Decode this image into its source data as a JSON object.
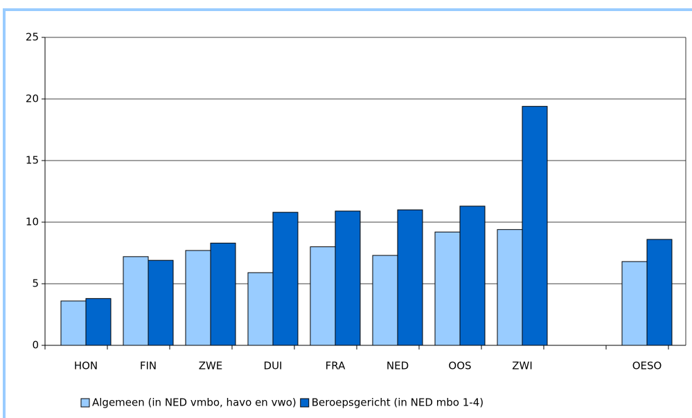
{
  "chart_data": {
    "type": "bar",
    "categories": [
      "HON",
      "FIN",
      "ZWE",
      "DUI",
      "FRA",
      "NED",
      "OOS",
      "ZWI",
      null,
      "OESO"
    ],
    "series": [
      {
        "name": "Algemeen (in NED vmbo, havo en vwo)",
        "color": "#99ccff",
        "values": [
          3.6,
          7.2,
          7.7,
          5.9,
          8.0,
          7.3,
          9.2,
          9.4,
          null,
          6.8
        ]
      },
      {
        "name": "Beroepsgericht (in NED mbo 1-4)",
        "color": "#0066cc",
        "values": [
          3.8,
          6.9,
          8.3,
          10.8,
          10.9,
          11.0,
          11.3,
          19.4,
          null,
          8.6
        ]
      }
    ],
    "ylim": [
      0,
      25
    ],
    "yticks": [
      0,
      5,
      10,
      15,
      20,
      25
    ],
    "grid": true,
    "legend": "bottom"
  }
}
